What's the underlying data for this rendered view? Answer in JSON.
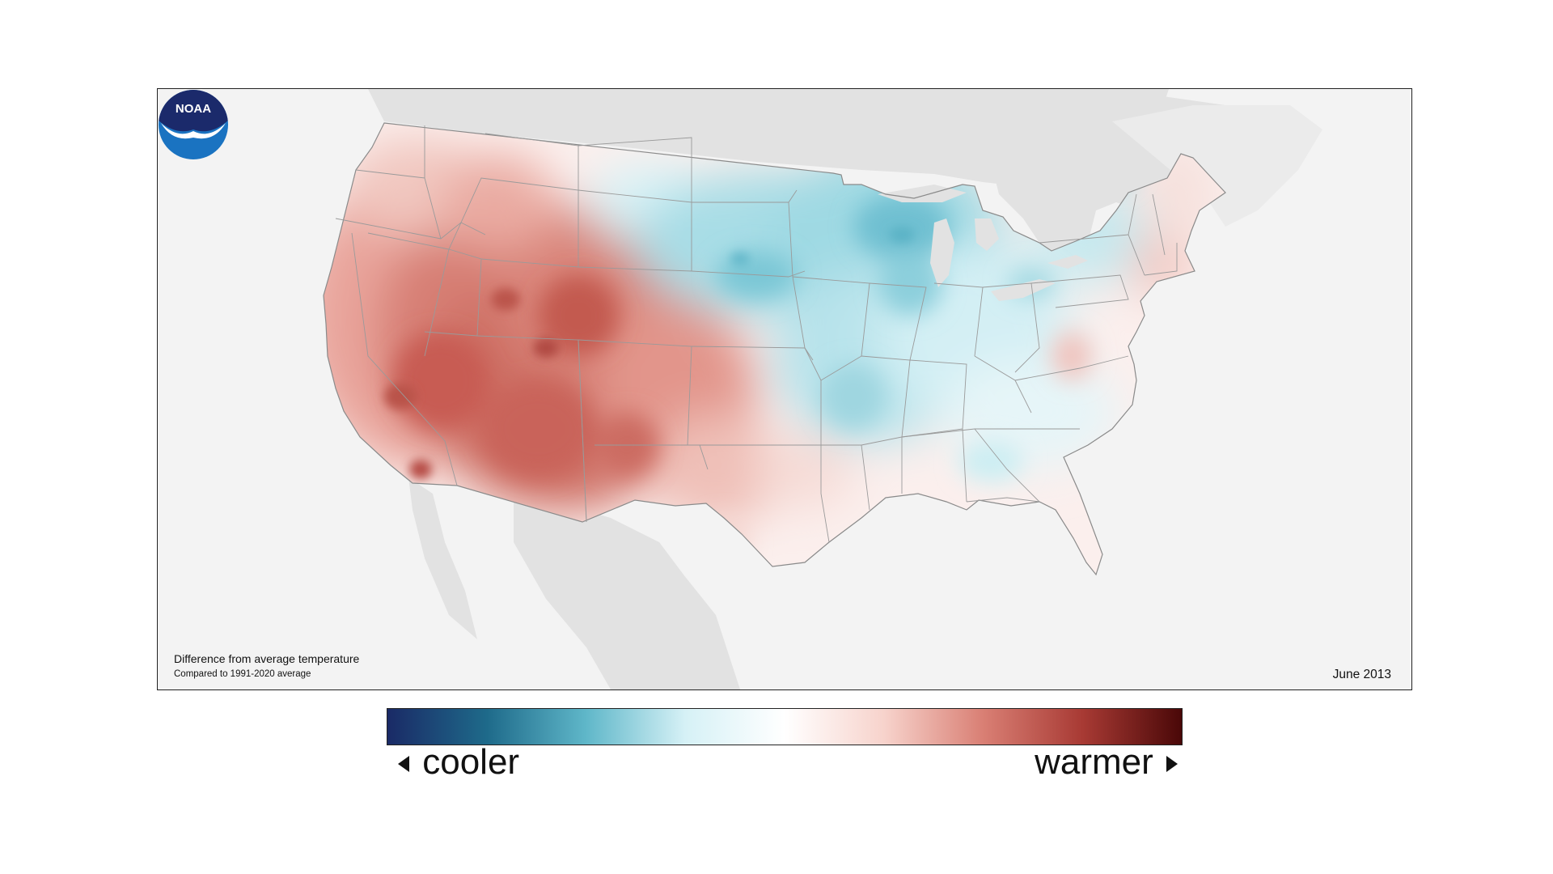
{
  "map": {
    "caption_title": "Difference from average temperature",
    "caption_subtitle": "Compared to 1991-2020 average",
    "date": "June 2013",
    "logo_text": "NOAA"
  },
  "legend": {
    "cool_label": "cooler",
    "warm_label": "warmer",
    "colors": [
      "#1a2a66",
      "#1e6a8a",
      "#5fb7c9",
      "#d6f1f6",
      "#ffffff",
      "#f7d3cc",
      "#d97f74",
      "#a83a34",
      "#4a0808"
    ]
  }
}
